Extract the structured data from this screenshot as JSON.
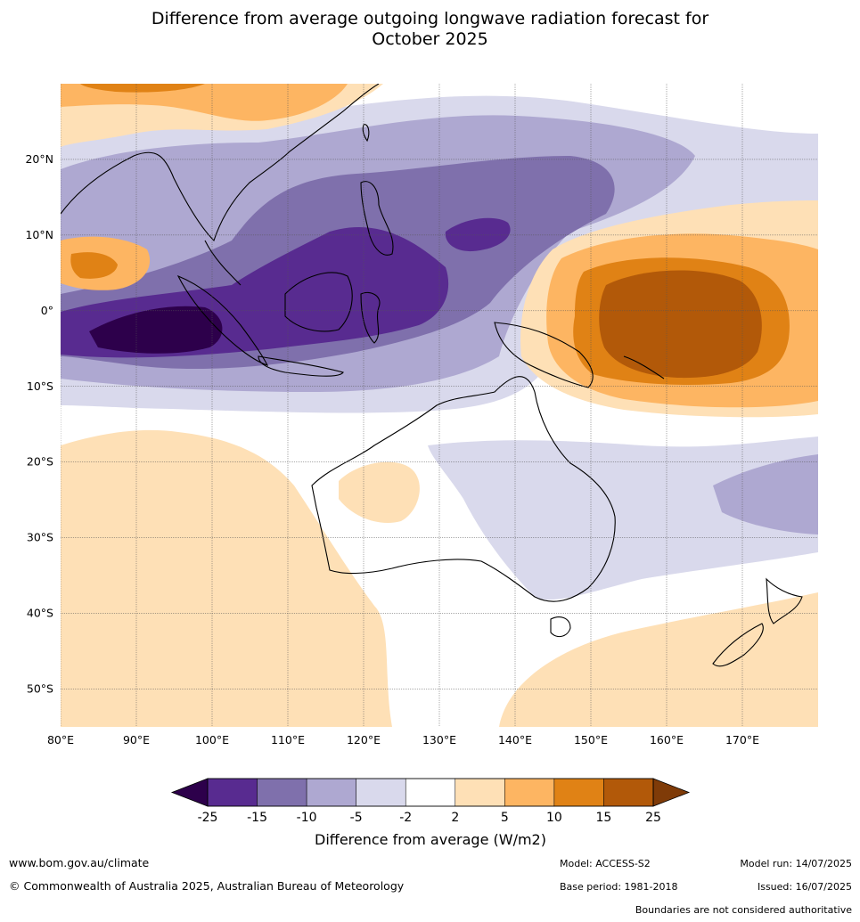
{
  "title": {
    "line1": "Difference from average outgoing longwave radiation forecast for",
    "line2": "October 2025"
  },
  "map": {
    "lon_range": [
      80,
      180
    ],
    "lat_range": [
      -55,
      30
    ],
    "lat_ticks": [
      {
        "value": 20,
        "label": "20°N"
      },
      {
        "value": 10,
        "label": "10°N"
      },
      {
        "value": 0,
        "label": "0°"
      },
      {
        "value": -10,
        "label": "10°S"
      },
      {
        "value": -20,
        "label": "20°S"
      },
      {
        "value": -30,
        "label": "30°S"
      },
      {
        "value": -40,
        "label": "40°S"
      },
      {
        "value": -50,
        "label": "50°S"
      }
    ],
    "lon_ticks": [
      {
        "value": 80,
        "label": "80°E"
      },
      {
        "value": 90,
        "label": "90°E"
      },
      {
        "value": 100,
        "label": "100°E"
      },
      {
        "value": 110,
        "label": "110°E"
      },
      {
        "value": 120,
        "label": "120°E"
      },
      {
        "value": 130,
        "label": "130°E"
      },
      {
        "value": 140,
        "label": "140°E"
      },
      {
        "value": 150,
        "label": "150°E"
      },
      {
        "value": 160,
        "label": "160°E"
      },
      {
        "value": 170,
        "label": "170°E"
      }
    ]
  },
  "colorbar": {
    "labels": [
      "-25",
      "-15",
      "-10",
      "-5",
      "-2",
      "2",
      "5",
      "10",
      "15",
      "25"
    ],
    "colors": [
      "#582b90",
      "#7f70ac",
      "#aea8d1",
      "#d9d9ec",
      "#ffffff",
      "#fee0b6",
      "#fdb562",
      "#e08215",
      "#b25909"
    ],
    "under_color": "#2d004b",
    "over_color": "#7f3b08",
    "title": "Difference from average (W/m2)"
  },
  "footer": {
    "website": "www.bom.gov.au/climate",
    "copyright": "© Commonwealth of Australia 2025, Australian Bureau of Meteorology",
    "model": "Model: ACCESS-S2",
    "base_period": "Base period: 1981-2018",
    "model_run": "Model run: 14/07/2025",
    "issued": "Issued: 16/07/2025",
    "disclaimer": "Boundaries are not considered authoritative"
  }
}
